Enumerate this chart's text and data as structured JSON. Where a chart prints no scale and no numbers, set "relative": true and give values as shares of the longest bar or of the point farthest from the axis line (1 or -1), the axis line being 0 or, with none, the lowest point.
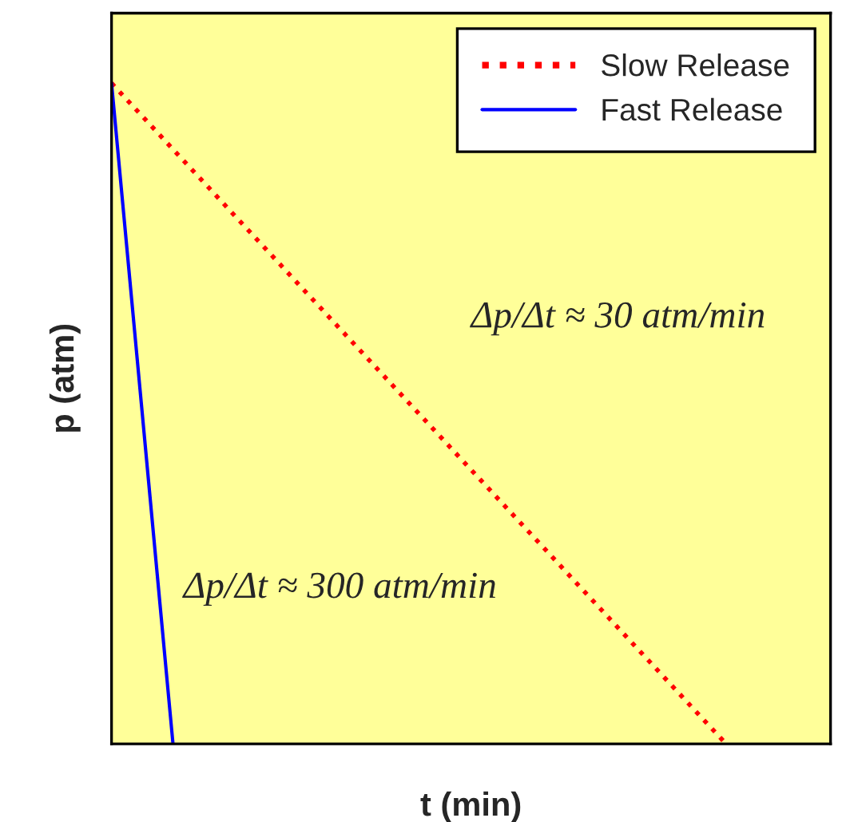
{
  "chart_data": {
    "type": "line",
    "relative": true,
    "xlabel": "t (min)",
    "ylabel": "p (atm)",
    "categories": [
      null,
      null,
      null,
      null,
      null,
      null,
      null,
      null,
      null,
      null,
      null
    ],
    "series": [
      {
        "name": "Slow Release",
        "color": "#ff0000",
        "line_style": "dotted",
        "values": [
          1,
          0.9,
          0.8,
          0.7,
          0.6,
          0.5,
          0.4,
          0.3,
          0.2,
          0.1,
          0
        ]
      },
      {
        "name": "Fast Release",
        "color": "#0000ff",
        "line_style": "solid",
        "values": [
          1,
          0,
          null,
          null,
          null,
          null,
          null,
          null,
          null,
          null,
          null
        ]
      }
    ],
    "annotations": [
      "Δp/Δt ≈ 30 atm/min",
      "Δp/Δt ≈ 300 atm/min"
    ],
    "legend": "top right",
    "grid": false
  }
}
